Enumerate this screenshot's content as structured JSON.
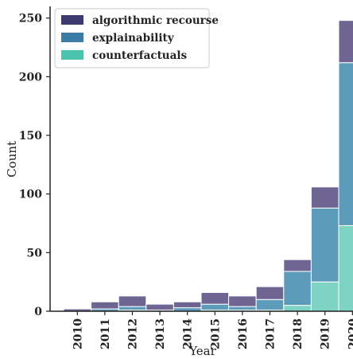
{
  "chart_data": {
    "type": "bar",
    "stacked": true,
    "xlabel": "Year",
    "ylabel": "Count",
    "categories": [
      "2010",
      "2011",
      "2012",
      "2013",
      "2014",
      "2015",
      "2016",
      "2017",
      "2018",
      "2019",
      "2020"
    ],
    "ylim": [
      0,
      260
    ],
    "yticks": [
      0,
      50,
      100,
      150,
      200,
      250
    ],
    "grid": false,
    "legend_position": "top-left",
    "series": [
      {
        "name": "counterfactuals",
        "color": "#7fd3c2",
        "values": [
          0,
          0,
          1,
          0,
          0,
          1,
          1,
          1,
          5,
          25,
          73
        ]
      },
      {
        "name": "explainability",
        "color": "#5d9bbb",
        "values": [
          0,
          2,
          3,
          1,
          3,
          5,
          3,
          9,
          29,
          63,
          139
        ]
      },
      {
        "name": "algorithmic recourse",
        "color": "#6e6593",
        "values": [
          2,
          6,
          9,
          5,
          5,
          10,
          9,
          11,
          10,
          18,
          36
        ]
      }
    ],
    "legend_entries": [
      {
        "label": "algorithmic recourse",
        "color": "#3d3a70"
      },
      {
        "label": "explainability",
        "color": "#3a7ca5"
      },
      {
        "label": "counterfactuals",
        "color": "#4cc4ad"
      }
    ]
  }
}
